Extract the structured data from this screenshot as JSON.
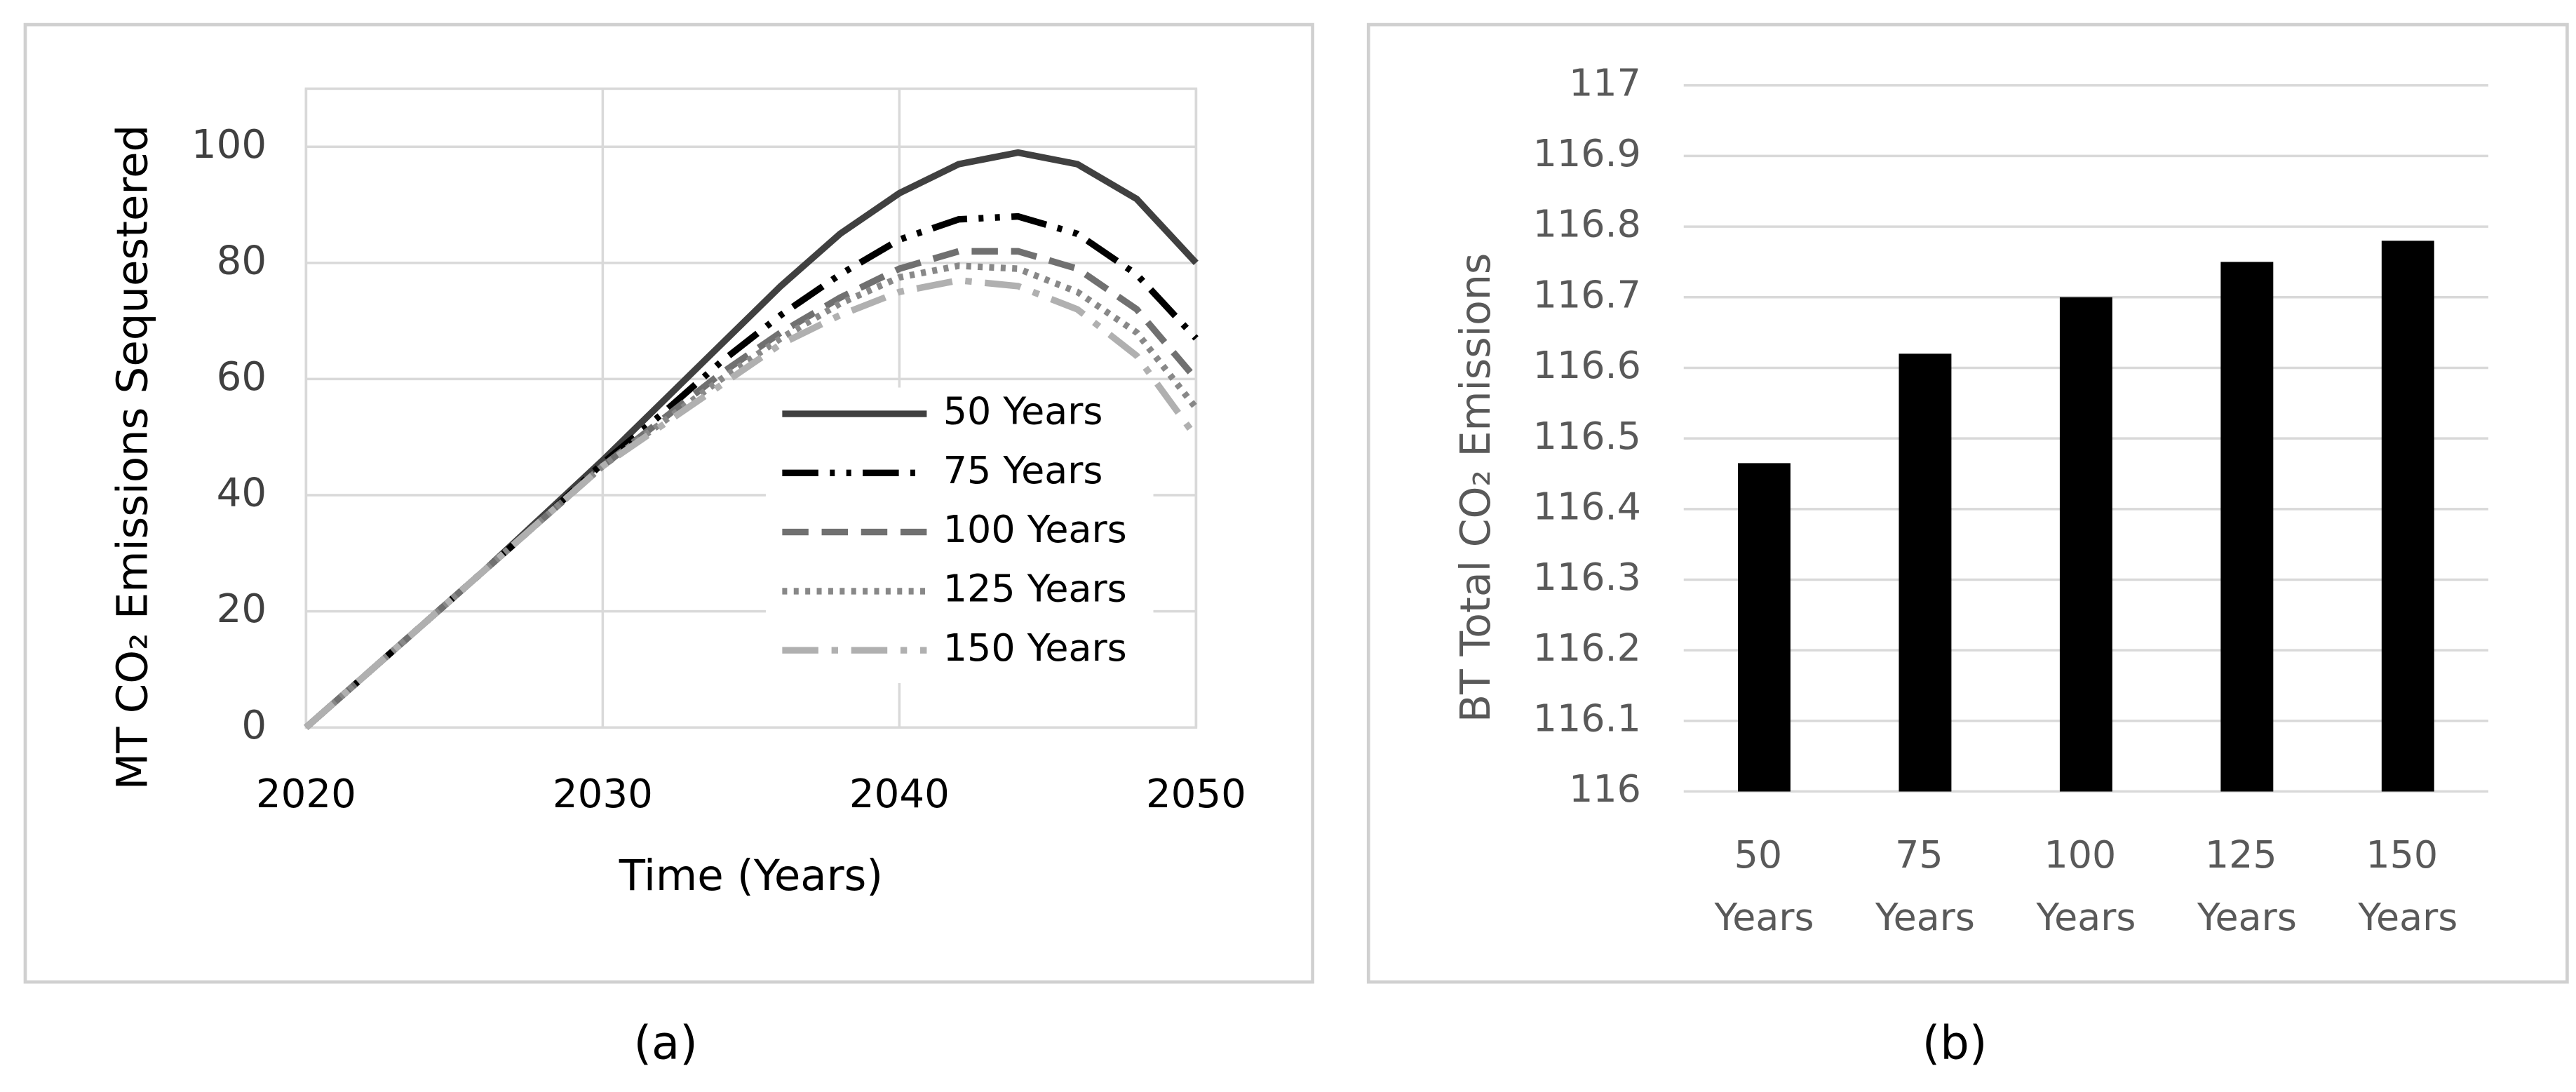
{
  "chart_data": [
    {
      "type": "line",
      "caption": "(a)",
      "xlabel": "Time (Years)",
      "ylabel": "MT CO₂ Emissions Sequestered",
      "x": [
        2020,
        2022,
        2024,
        2026,
        2028,
        2030,
        2032,
        2034,
        2036,
        2038,
        2040,
        2042,
        2044,
        2046,
        2048,
        2050
      ],
      "xlim": [
        2020,
        2050
      ],
      "xticks": [
        2020,
        2030,
        2040,
        2050
      ],
      "ylim": [
        0,
        110
      ],
      "yticks": [
        0,
        20,
        40,
        60,
        80,
        100
      ],
      "grid": true,
      "legend": "right",
      "series": [
        {
          "name": "50 Years",
          "color": "#404040",
          "dash": "none",
          "values": [
            0,
            9,
            18,
            27,
            36.5,
            46,
            56,
            66,
            76,
            85,
            92,
            97,
            99,
            97,
            91,
            80
          ]
        },
        {
          "name": "75 Years",
          "color": "#000000",
          "dash": "22 7 3 7 3 7",
          "values": [
            0,
            9,
            18,
            27,
            36,
            45.5,
            54,
            63,
            71,
            78,
            84,
            87.5,
            88,
            85,
            78,
            67
          ]
        },
        {
          "name": "100 Years",
          "color": "#707070",
          "dash": "16 8",
          "values": [
            0,
            9,
            18,
            27,
            36,
            45,
            53,
            61,
            68,
            74,
            79,
            82,
            82,
            79,
            72,
            60
          ]
        },
        {
          "name": "125 Years",
          "color": "#888888",
          "dash": "3 4",
          "values": [
            0,
            9,
            18,
            27,
            36,
            45,
            52.5,
            60,
            67,
            73,
            77.5,
            79.5,
            79,
            75,
            68,
            55
          ]
        },
        {
          "name": "150 Years",
          "color": "#b0b0b0",
          "dash": "22 8 4 8",
          "values": [
            0,
            9,
            18,
            27,
            36,
            45,
            52,
            59,
            66,
            71,
            75,
            77,
            76,
            72,
            64,
            50
          ]
        }
      ]
    },
    {
      "type": "bar",
      "caption": "(b)",
      "ylabel": "BT Total CO₂ Emissions",
      "categories": [
        "50 Years",
        "75 Years",
        "100 Years",
        "125 Years",
        "150 Years"
      ],
      "values": [
        116.465,
        116.62,
        116.7,
        116.75,
        116.78
      ],
      "color": "#000000",
      "ylim": [
        116,
        117
      ],
      "yticks": [
        116,
        116.1,
        116.2,
        116.3,
        116.4,
        116.5,
        116.6,
        116.7,
        116.8,
        116.9,
        117
      ],
      "grid": true
    }
  ]
}
